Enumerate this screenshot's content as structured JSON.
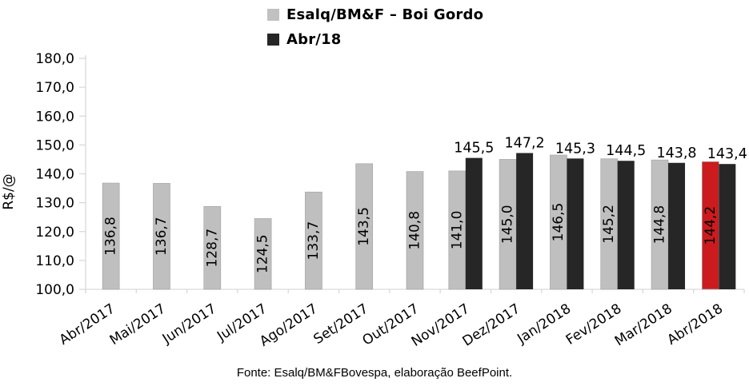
{
  "chart_data": {
    "type": "bar",
    "title": "Esalq/BM&F – Boi Gordo",
    "ylabel": "R$/@",
    "ylim": [
      100,
      180
    ],
    "ytick_step": 10,
    "yticks": [
      {
        "value": 180,
        "label": "180,0"
      },
      {
        "value": 170,
        "label": "170,0"
      },
      {
        "value": 160,
        "label": "160,0"
      },
      {
        "value": 150,
        "label": "150,0"
      },
      {
        "value": 140,
        "label": "140,0"
      },
      {
        "value": 130,
        "label": "130,0"
      },
      {
        "value": 120,
        "label": "120,0"
      },
      {
        "value": 110,
        "label": "110,0"
      },
      {
        "value": 100,
        "label": "100,0"
      }
    ],
    "categories": [
      "Abr/2017",
      "Mai/2017",
      "Jun/2017",
      "Jul/2017",
      "Ago/2017",
      "Set/2017",
      "Out/2017",
      "Nov/2017",
      "Dez/2017",
      "Jan/2018",
      "Fev/2018",
      "Mar/2018",
      "Abr/2018"
    ],
    "grid": false,
    "legend_position": "top",
    "series": [
      {
        "name": "Esalq/BM&F – Boi Gordo",
        "color": "#bfbfbf",
        "border_color": "#a6a6a6",
        "label_placement": "inside-rotated",
        "values": [
          136.8,
          136.7,
          128.7,
          124.5,
          133.7,
          143.5,
          140.8,
          141.0,
          145.0,
          146.5,
          145.2,
          144.8,
          144.2
        ],
        "labels": [
          "136,8",
          "136,7",
          "128,7",
          "124,5",
          "133,7",
          "143,5",
          "140,8",
          "141,0",
          "145,0",
          "146,5",
          "145,2",
          "144,8",
          "144,2"
        ],
        "bar_colors": [
          "#bfbfbf",
          "#bfbfbf",
          "#bfbfbf",
          "#bfbfbf",
          "#bfbfbf",
          "#bfbfbf",
          "#bfbfbf",
          "#bfbfbf",
          "#bfbfbf",
          "#bfbfbf",
          "#bfbfbf",
          "#bfbfbf",
          "#cc1b1e"
        ]
      },
      {
        "name": "Abr/18",
        "color": "#262626",
        "label_placement": "above",
        "values": [
          null,
          null,
          null,
          null,
          null,
          null,
          null,
          145.5,
          147.2,
          145.3,
          144.5,
          143.8,
          143.4
        ],
        "labels": [
          null,
          null,
          null,
          null,
          null,
          null,
          null,
          "145,5",
          "147,2",
          "145,3",
          "144,5",
          "143,8",
          "143,4"
        ]
      }
    ],
    "highlight": {
      "category": "Abr/2018",
      "series": "Esalq/BM&F – Boi Gordo",
      "color": "#cc1b1e"
    },
    "legend": [
      {
        "label": "Esalq/BM&F – Boi Gordo",
        "color": "#c1c1c1"
      },
      {
        "label": "Abr/18",
        "color": "#262626"
      }
    ],
    "axis_color": "#d9d9d9",
    "text_color": "#000000",
    "footer": "Fonte: Esalq/BM&FBovespa, elaboração BeefPoint."
  }
}
